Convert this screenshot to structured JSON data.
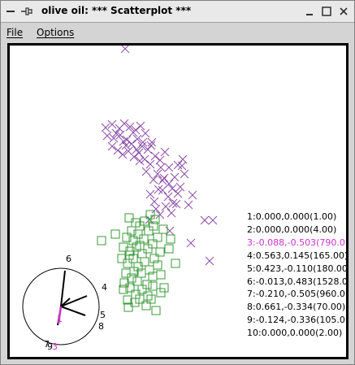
{
  "window": {
    "title": "olive oil: *** Scatterplot ***",
    "menu_icon": "menu-dash-icon",
    "pin_icon": "pin-icon"
  },
  "menubar": {
    "file_label": "File",
    "options_label": "Options"
  },
  "colors": {
    "cluster_purple": "#8c4fa6",
    "cluster_green": "#3a9a3a",
    "selected_magenta": "#cc33cc"
  },
  "coord_list": [
    {
      "label": "1:0.000,0.000(1.00)",
      "selected": false
    },
    {
      "label": "2:0.000,0.000(4.00)",
      "selected": false
    },
    {
      "label": "3:-0.088,-0.503(790.0",
      "selected": true
    },
    {
      "label": "4:0.563,0.145(165.00)",
      "selected": false
    },
    {
      "label": "5:0.423,-0.110(180.00",
      "selected": false
    },
    {
      "label": "6:-0.013,0.483(1528.0",
      "selected": false
    },
    {
      "label": "7:-0.210,-0.505(960.0",
      "selected": false
    },
    {
      "label": "8:0.661,-0.334(70.00)",
      "selected": false
    },
    {
      "label": "9:-0.124,-0.336(105.0",
      "selected": false
    },
    {
      "label": "10:0.000,0.000(2.00)",
      "selected": false
    }
  ],
  "axes_labels": {
    "l6": "6",
    "l4": "4",
    "l5": "5",
    "l8": "8",
    "l7": "7",
    "l9": "9",
    "l3": "3",
    "l1": "1"
  }
}
